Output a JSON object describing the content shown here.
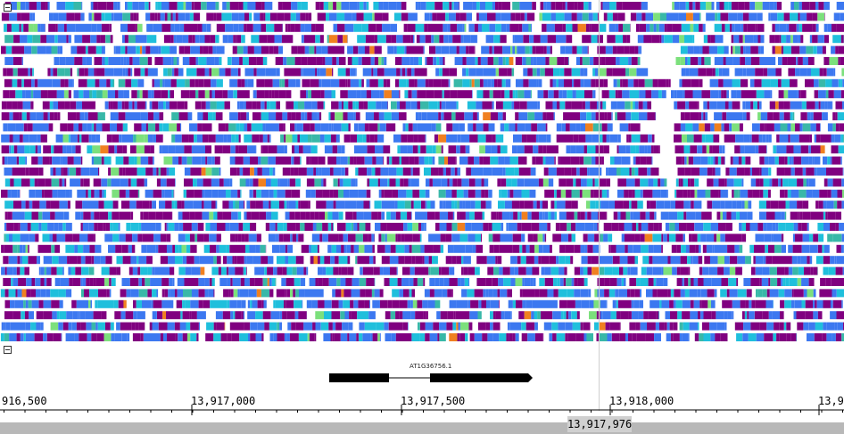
{
  "reads_track": {
    "colors": {
      "purple": "#800080",
      "blue": "#3c78f0",
      "cyan": "#1fbfdc",
      "teal": "#38b8a8",
      "green": "#7ce07c",
      "orange": "#f08020",
      "gray": "#9a9a9a"
    }
  },
  "gene": {
    "label": "AT1G36756.1"
  },
  "ruler": {
    "ticks": [
      {
        "label": "916,500"
      },
      {
        "label": "13,917,000"
      },
      {
        "label": "13,917,500"
      },
      {
        "label": "13,918,000"
      },
      {
        "label": "13,9"
      }
    ]
  },
  "position_readout": "13,917,976",
  "icons": [
    "collapse-icon"
  ]
}
